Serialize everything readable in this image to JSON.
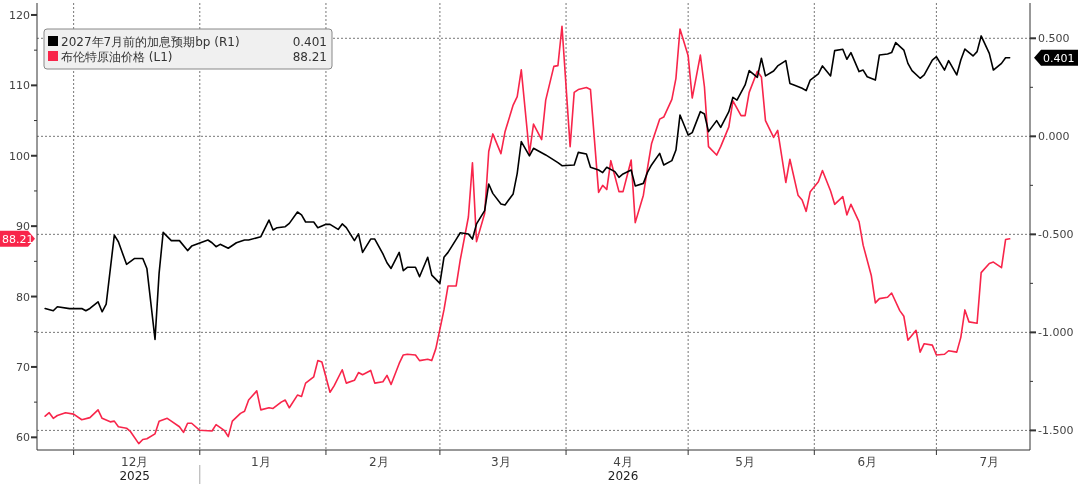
{
  "chart_data": {
    "type": "line",
    "xlim": [
      "2025-11-22",
      "2026-07-24"
    ],
    "xticks": [
      {
        "value": "2025-12-01",
        "label": null
      },
      {
        "value": "2025-12-16",
        "label": "12月\n2025"
      },
      {
        "value": "2026-01-01",
        "label": null
      },
      {
        "value": "2026-01-16",
        "label": "1月"
      },
      {
        "value": "2026-02-01",
        "label": null
      },
      {
        "value": "2026-02-14",
        "label": "2月"
      },
      {
        "value": "2026-03-01",
        "label": null
      },
      {
        "value": "2026-03-16",
        "label": "3月"
      },
      {
        "value": "2026-04-01",
        "label": null
      },
      {
        "value": "2026-04-15",
        "label": "4月\n2026"
      },
      {
        "value": "2026-05-01",
        "label": null
      },
      {
        "value": "2026-05-15",
        "label": "5月"
      },
      {
        "value": "2026-06-01",
        "label": null
      },
      {
        "value": "2026-06-14",
        "label": "6月"
      },
      {
        "value": "2026-07-01",
        "label": null
      },
      {
        "value": "2026-07-14",
        "label": "7月"
      }
    ],
    "ylim": [
      58.2,
      121.7
    ],
    "yticks": [
      60,
      {
        "value": 65,
        "label": null
      },
      70,
      {
        "value": 75,
        "label": null
      },
      80,
      {
        "value": 85,
        "label": null
      },
      90,
      {
        "value": 95,
        "label": null
      },
      100,
      {
        "value": 105,
        "label": null
      },
      110,
      {
        "value": 115,
        "label": null
      },
      120
    ],
    "y2lim": [
      -1.6,
      0.68
    ],
    "y2ticks": [
      {
        "value": -1.5,
        "label": "-1.500"
      },
      {
        "value": -1.25,
        "label": null
      },
      {
        "value": -1,
        "label": "-1.000"
      },
      {
        "value": -0.75,
        "label": null
      },
      {
        "value": -0.5,
        "label": "-0.500"
      },
      {
        "value": -0.25,
        "label": null
      },
      {
        "value": 0,
        "label": "0.000"
      },
      {
        "value": 0.25,
        "label": null
      },
      {
        "value": 0.5,
        "label": "0.500"
      }
    ],
    "grid": true,
    "legend": "top left",
    "series": [
      {
        "name": "2027年7月前的加息预期bp (R1)",
        "color": "#000000",
        "axis": "y2",
        "x": [
          "2025-11-24",
          "2025-11-26",
          "2025-11-27",
          "2025-11-30",
          "2025-12-03",
          "2025-12-04",
          "2025-12-05",
          "2025-12-07",
          "2025-12-08",
          "2025-12-09",
          "2025-12-11",
          "2025-12-12",
          "2025-12-14",
          "2025-12-16",
          "2025-12-18",
          "2025-12-19",
          "2025-12-21",
          "2025-12-22",
          "2025-12-23",
          "2025-12-25",
          "2025-12-27",
          "2025-12-29",
          "2025-12-30",
          "2026-01-03",
          "2026-01-04",
          "2026-01-05",
          "2026-01-06",
          "2026-01-08",
          "2026-01-10",
          "2026-01-12",
          "2026-01-13",
          "2026-01-16",
          "2026-01-18",
          "2026-01-19",
          "2026-01-20",
          "2026-01-22",
          "2026-01-23",
          "2026-01-25",
          "2026-01-26",
          "2026-01-27",
          "2026-01-29",
          "2026-01-30",
          "2026-02-01",
          "2026-02-02",
          "2026-02-04",
          "2026-02-05",
          "2026-02-06",
          "2026-02-08",
          "2026-02-09",
          "2026-02-10",
          "2026-02-12",
          "2026-02-13",
          "2026-02-15",
          "2026-02-16",
          "2026-02-17",
          "2026-02-19",
          "2026-02-20",
          "2026-02-21",
          "2026-02-23",
          "2026-02-24",
          "2026-02-26",
          "2026-02-27",
          "2026-03-01",
          "2026-03-02",
          "2026-03-03",
          "2026-03-05",
          "2026-03-06",
          "2026-03-08",
          "2026-03-09",
          "2026-03-10",
          "2026-03-12",
          "2026-03-13",
          "2026-03-14",
          "2026-03-16",
          "2026-03-17",
          "2026-03-19",
          "2026-03-20",
          "2026-03-21",
          "2026-03-23",
          "2026-03-24",
          "2026-03-27",
          "2026-03-30",
          "2026-03-31",
          "2026-04-03",
          "2026-04-04",
          "2026-04-06",
          "2026-04-07",
          "2026-04-09",
          "2026-04-10",
          "2026-04-11",
          "2026-04-13",
          "2026-04-14",
          "2026-04-15",
          "2026-04-17",
          "2026-04-18",
          "2026-04-20",
          "2026-04-21",
          "2026-04-22",
          "2026-04-24",
          "2026-04-25",
          "2026-04-27",
          "2026-04-28",
          "2026-04-29",
          "2026-05-01",
          "2026-05-02",
          "2026-05-04",
          "2026-05-05",
          "2026-05-06",
          "2026-05-08",
          "2026-05-09",
          "2026-05-11",
          "2026-05-12",
          "2026-05-13",
          "2026-05-15",
          "2026-05-16",
          "2026-05-18",
          "2026-05-19",
          "2026-05-20",
          "2026-05-22",
          "2026-05-23",
          "2026-05-25",
          "2026-05-26",
          "2026-05-27",
          "2026-05-29",
          "2026-05-30",
          "2026-05-31",
          "2026-06-02",
          "2026-06-03",
          "2026-06-05",
          "2026-06-06",
          "2026-06-08",
          "2026-06-09",
          "2026-06-10",
          "2026-06-12",
          "2026-06-13",
          "2026-06-14",
          "2026-06-16",
          "2026-06-17",
          "2026-06-19",
          "2026-06-20",
          "2026-06-21",
          "2026-06-23",
          "2026-06-24",
          "2026-06-25",
          "2026-06-27",
          "2026-06-28",
          "2026-06-30",
          "2026-07-01",
          "2026-07-03",
          "2026-07-04",
          "2026-07-06",
          "2026-07-07",
          "2026-07-08",
          "2026-07-10",
          "2026-07-11",
          "2026-07-12",
          "2026-07-14",
          "2026-07-15",
          "2026-07-17",
          "2026-07-18",
          "2026-07-19"
        ],
        "values": [
          -0.878,
          -0.89,
          -0.869,
          -0.879,
          -0.878,
          -0.89,
          -0.878,
          -0.844,
          -0.895,
          -0.856,
          -0.504,
          -0.538,
          -0.653,
          -0.623,
          -0.623,
          -0.674,
          -1.036,
          -0.699,
          -0.49,
          -0.532,
          -0.532,
          -0.583,
          -0.56,
          -0.529,
          -0.543,
          -0.563,
          -0.551,
          -0.571,
          -0.543,
          -0.529,
          -0.529,
          -0.512,
          -0.427,
          -0.478,
          -0.466,
          -0.461,
          -0.444,
          -0.386,
          -0.401,
          -0.437,
          -0.437,
          -0.466,
          -0.449,
          -0.449,
          -0.475,
          -0.447,
          -0.466,
          -0.532,
          -0.498,
          -0.592,
          -0.524,
          -0.524,
          -0.6,
          -0.645,
          -0.674,
          -0.592,
          -0.685,
          -0.668,
          -0.668,
          -0.716,
          -0.617,
          -0.708,
          -0.75,
          -0.617,
          -0.592,
          -0.526,
          -0.492,
          -0.498,
          -0.524,
          -0.447,
          -0.379,
          -0.243,
          -0.291,
          -0.345,
          -0.35,
          -0.294,
          -0.189,
          -0.027,
          -0.1,
          -0.061,
          -0.095,
          -0.134,
          -0.15,
          -0.146,
          -0.082,
          -0.09,
          -0.158,
          -0.172,
          -0.185,
          -0.158,
          -0.18,
          -0.209,
          -0.192,
          -0.172,
          -0.253,
          -0.24,
          -0.184,
          -0.146,
          -0.087,
          -0.146,
          -0.124,
          -0.07,
          0.109,
          0.007,
          0.019,
          0.126,
          0.114,
          0.024,
          0.08,
          0.046,
          0.126,
          0.199,
          0.185,
          0.262,
          0.335,
          0.301,
          0.398,
          0.308,
          0.333,
          0.359,
          0.386,
          0.27,
          0.262,
          0.245,
          0.233,
          0.287,
          0.318,
          0.359,
          0.308,
          0.437,
          0.444,
          0.393,
          0.427,
          0.33,
          0.338,
          0.304,
          0.287,
          0.415,
          0.42,
          0.427,
          0.478,
          0.44,
          0.372,
          0.335,
          0.296,
          0.313,
          0.389,
          0.406,
          0.338,
          0.386,
          0.313,
          0.389,
          0.445,
          0.41,
          0.432,
          0.512,
          0.423,
          0.338,
          0.372,
          0.401,
          0.401
        ]
      },
      {
        "name": "布伦特原油价格 (L1)",
        "color": "#f8254a",
        "x": [
          "2025-11-24",
          "2025-11-25",
          "2025-11-26",
          "2025-11-27",
          "2025-11-29",
          "2025-12-01",
          "2025-12-03",
          "2025-12-05",
          "2025-12-07",
          "2025-12-08",
          "2025-12-10",
          "2025-12-11",
          "2025-12-12",
          "2025-12-14",
          "2025-12-15",
          "2025-12-17",
          "2025-12-18",
          "2025-12-19",
          "2025-12-21",
          "2025-12-22",
          "2025-12-24",
          "2025-12-25",
          "2025-12-27",
          "2025-12-28",
          "2025-12-29",
          "2025-12-30",
          "2026-01-01",
          "2026-01-04",
          "2026-01-05",
          "2026-01-07",
          "2026-01-08",
          "2026-01-09",
          "2026-01-11",
          "2026-01-12",
          "2026-01-13",
          "2026-01-15",
          "2026-01-16",
          "2026-01-18",
          "2026-01-19",
          "2026-01-21",
          "2026-01-22",
          "2026-01-23",
          "2026-01-25",
          "2026-01-26",
          "2026-01-27",
          "2026-01-29",
          "2026-01-30",
          "2026-01-31",
          "2026-02-02",
          "2026-02-03",
          "2026-02-05",
          "2026-02-06",
          "2026-02-08",
          "2026-02-09",
          "2026-02-10",
          "2026-02-12",
          "2026-02-13",
          "2026-02-15",
          "2026-02-16",
          "2026-02-17",
          "2026-02-19",
          "2026-02-20",
          "2026-02-21",
          "2026-02-23",
          "2026-02-24",
          "2026-02-26",
          "2026-02-27",
          "2026-02-28",
          "2026-03-02",
          "2026-03-03",
          "2026-03-05",
          "2026-03-06",
          "2026-03-08",
          "2026-03-09",
          "2026-03-10",
          "2026-03-12",
          "2026-03-13",
          "2026-03-14",
          "2026-03-16",
          "2026-03-17",
          "2026-03-19",
          "2026-03-20",
          "2026-03-21",
          "2026-03-23",
          "2026-03-24",
          "2026-03-26",
          "2026-03-27",
          "2026-03-29",
          "2026-03-30",
          "2026-03-31",
          "2026-04-02",
          "2026-04-03",
          "2026-04-04",
          "2026-04-06",
          "2026-04-07",
          "2026-04-09",
          "2026-04-10",
          "2026-04-11",
          "2026-04-12",
          "2026-04-14",
          "2026-04-15",
          "2026-04-17",
          "2026-04-18",
          "2026-04-20",
          "2026-04-21",
          "2026-04-22",
          "2026-04-24",
          "2026-04-25",
          "2026-04-27",
          "2026-04-28",
          "2026-04-29",
          "2026-05-01",
          "2026-05-02",
          "2026-05-04",
          "2026-05-05",
          "2026-05-06",
          "2026-05-08",
          "2026-05-09",
          "2026-05-11",
          "2026-05-12",
          "2026-05-14",
          "2026-05-15",
          "2026-05-16",
          "2026-05-18",
          "2026-05-19",
          "2026-05-20",
          "2026-05-22",
          "2026-05-23",
          "2026-05-25",
          "2026-05-26",
          "2026-05-28",
          "2026-05-29",
          "2026-05-30",
          "2026-05-31",
          "2026-06-02",
          "2026-06-03",
          "2026-06-05",
          "2026-06-06",
          "2026-06-08",
          "2026-06-09",
          "2026-06-10",
          "2026-06-12",
          "2026-06-13",
          "2026-06-15",
          "2026-06-16",
          "2026-06-17",
          "2026-06-19",
          "2026-06-20",
          "2026-06-22",
          "2026-06-23",
          "2026-06-24",
          "2026-06-26",
          "2026-06-27",
          "2026-06-28",
          "2026-06-30",
          "2026-07-01",
          "2026-07-03",
          "2026-07-04",
          "2026-07-06",
          "2026-07-07",
          "2026-07-08",
          "2026-07-09",
          "2026-07-11",
          "2026-07-12",
          "2026-07-14",
          "2026-07-15",
          "2026-07-17",
          "2026-07-18",
          "2026-07-19"
        ],
        "values": [
          63.0,
          63.5,
          62.7,
          63.1,
          63.5,
          63.3,
          62.5,
          62.8,
          63.9,
          62.7,
          62.2,
          62.3,
          61.5,
          61.3,
          60.8,
          59.1,
          59.7,
          59.8,
          60.5,
          62.3,
          62.7,
          62.3,
          61.5,
          60.7,
          62.0,
          62.0,
          61.0,
          60.9,
          61.8,
          61.0,
          60.1,
          62.3,
          63.4,
          63.7,
          65.3,
          66.6,
          63.9,
          64.2,
          64.1,
          65.0,
          65.3,
          64.2,
          66.0,
          65.8,
          67.7,
          68.6,
          70.9,
          70.7,
          66.4,
          67.3,
          69.6,
          67.7,
          68.1,
          69.2,
          68.9,
          69.5,
          67.7,
          67.9,
          68.8,
          67.5,
          70.5,
          71.7,
          71.8,
          71.7,
          70.9,
          71.1,
          70.9,
          72.6,
          78.1,
          81.5,
          81.5,
          85.2,
          91.3,
          99.0,
          87.8,
          91.8,
          100.6,
          103.1,
          100.3,
          103.4,
          107.2,
          108.4,
          112.2,
          100.3,
          104.5,
          102.3,
          107.9,
          112.7,
          112.8,
          118.4,
          101.3,
          109.0,
          109.4,
          109.7,
          109.4,
          94.8,
          95.8,
          95.2,
          99.3,
          94.9,
          94.9,
          99.4,
          90.5,
          94.4,
          98.2,
          101.7,
          105.2,
          105.5,
          108.0,
          111.0,
          118.0,
          114.2,
          108.2,
          114.3,
          109.8,
          101.3,
          100.1,
          101.3,
          104.1,
          107.8,
          105.7,
          105.7,
          109.0,
          112.0,
          111.2,
          105.0,
          102.6,
          103.6,
          96.2,
          99.5,
          94.4,
          93.7,
          92.1,
          94.9,
          96.3,
          97.9,
          95.0,
          93.1,
          94.2,
          91.6,
          93.1,
          90.6,
          87.3,
          83.0,
          79.1,
          79.7,
          79.9,
          80.5,
          78.0,
          77.2,
          73.8,
          75.2,
          72.1,
          73.3,
          73.1,
          71.7,
          71.8,
          72.3,
          72.1,
          74.2,
          78.1,
          76.4,
          76.2,
          83.4,
          84.7,
          84.9,
          84.1,
          88.1,
          88.2
        ]
      }
    ],
    "annotations": [
      "0.401",
      "88.21"
    ]
  }
}
